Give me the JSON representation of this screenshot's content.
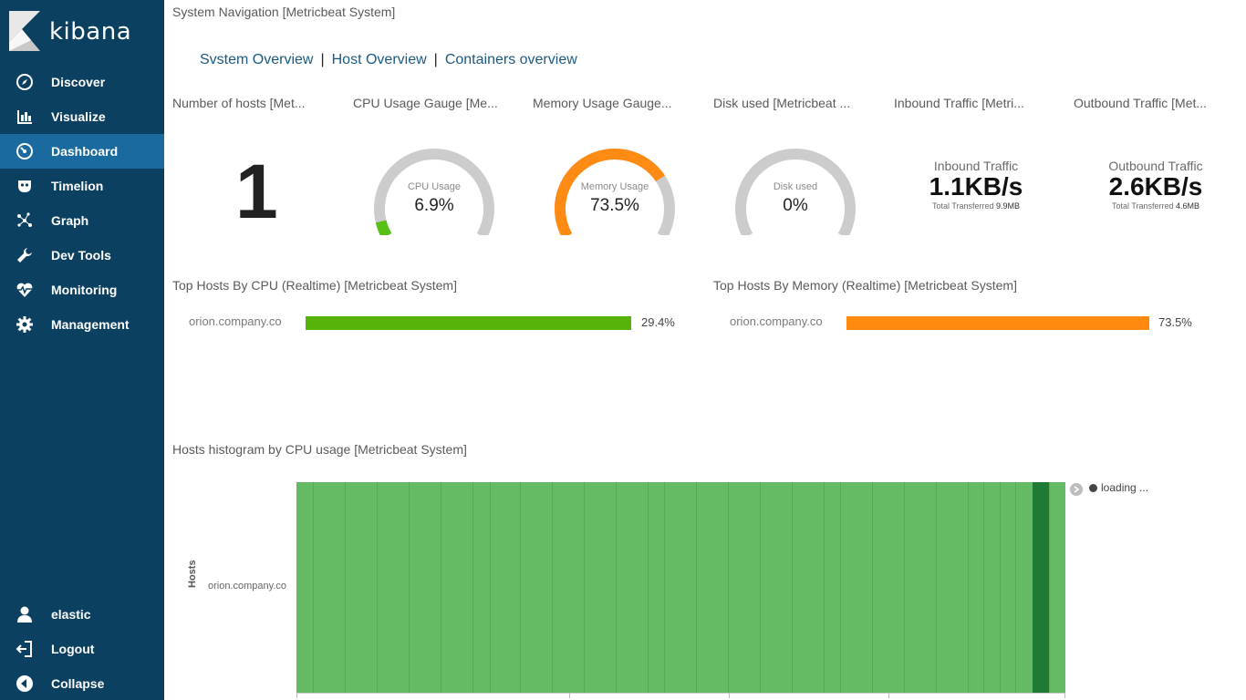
{
  "app": {
    "name": "kibana"
  },
  "sidebar": {
    "items": [
      {
        "label": "Discover",
        "icon": "compass-icon",
        "active": false
      },
      {
        "label": "Visualize",
        "icon": "bar-chart-icon",
        "active": false
      },
      {
        "label": "Dashboard",
        "icon": "dashboard-gauge-icon",
        "active": true
      },
      {
        "label": "Timelion",
        "icon": "timelion-mask-icon",
        "active": false
      },
      {
        "label": "Graph",
        "icon": "graph-icon",
        "active": false
      },
      {
        "label": "Dev Tools",
        "icon": "wrench-icon",
        "active": false
      },
      {
        "label": "Monitoring",
        "icon": "heartbeat-icon",
        "active": false
      },
      {
        "label": "Management",
        "icon": "gear-icon",
        "active": false
      }
    ],
    "bottom": [
      {
        "label": "elastic",
        "icon": "user-icon"
      },
      {
        "label": "Logout",
        "icon": "logout-icon"
      },
      {
        "label": "Collapse",
        "icon": "collapse-arrow-icon"
      }
    ]
  },
  "dashboard": {
    "system_navigation": {
      "title": "System Navigation [Metricbeat System]",
      "links": [
        "Svstem Overview",
        "Host Overview",
        "Containers overview"
      ]
    },
    "panels": {
      "hosts": {
        "title": "Number of hosts [Met...",
        "value": "1"
      },
      "cpu": {
        "title": "CPU Usage Gauge [Me...",
        "label": "CPU Usage",
        "value": "6.9%",
        "fraction": 0.069,
        "color": "#57c017"
      },
      "memory": {
        "title": "Memory Usage Gauge...",
        "label": "Memory Usage",
        "value": "73.5%",
        "fraction": 0.735,
        "color": "#ff8a14"
      },
      "disk": {
        "title": "Disk used [Metricbeat ...",
        "label": "Disk used",
        "value": "0%",
        "fraction": 0,
        "color": "#cccccc"
      },
      "inbound": {
        "title": "Inbound Traffic [Metri...",
        "label": "Inbound Traffic",
        "value": "1.1KB/s",
        "sub_label": "Total Transferred",
        "sub_value": "9.9MB"
      },
      "outbound": {
        "title": "Outbound Traffic [Met...",
        "label": "Outbound Traffic",
        "value": "2.6KB/s",
        "sub_label": "Total Transferred",
        "sub_value": "4.6MB"
      },
      "top_cpu": {
        "title": "Top Hosts By CPU (Realtime) [Metricbeat System]",
        "host": "orion.company.co",
        "value": "29.4%",
        "color": "#57b30a"
      },
      "top_memory": {
        "title": "Top Hosts By Memory (Realtime) [Metricbeat System]",
        "host": "orion.company.co",
        "value": "73.5%",
        "color": "#ff8a0f"
      },
      "histogram": {
        "title": "Hosts histogram by CPU usage [Metricbeat System]",
        "y_axis_title": "Hosts",
        "y_category": "orion.company.co",
        "legend_label": "loading ...",
        "bar_color": "#64bb64",
        "dark_color": "#1f7a34"
      }
    }
  }
}
